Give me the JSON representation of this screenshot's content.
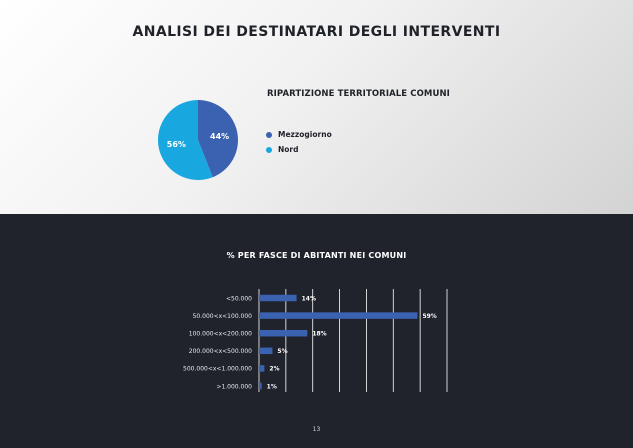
{
  "title": "ANALISI DEI DESTINATARI DEGLI INTERVENTI",
  "page_number": "13",
  "colors": {
    "mezzogiorno": "#3a62b0",
    "nord": "#19a7e0",
    "bar": "#3a62b0",
    "background_dark": "#20232c"
  },
  "chart_data": [
    {
      "type": "pie",
      "title": "RIPARTIZIONE TERRITORIALE COMUNI",
      "slices": [
        {
          "label": "Mezzogiorno",
          "value": 44,
          "display": "44%"
        },
        {
          "label": "Nord",
          "value": 56,
          "display": "56%"
        }
      ],
      "legend_position": "right"
    },
    {
      "type": "bar",
      "orientation": "horizontal",
      "title": "% PER FASCE DI ABITANTI NEI COMUNI",
      "categories": [
        "<50.000",
        "50.000<x<100.000",
        "100.000<x<200.000",
        "200.000<x<500.000",
        "500.000<x<1.000.000",
        ">1.000.000"
      ],
      "values": [
        14,
        59,
        18,
        5,
        2,
        1
      ],
      "labels": [
        "14%",
        "59%",
        "18%",
        "5%",
        "2%",
        "1%"
      ],
      "xlim": [
        0,
        70
      ],
      "grid": true
    }
  ]
}
